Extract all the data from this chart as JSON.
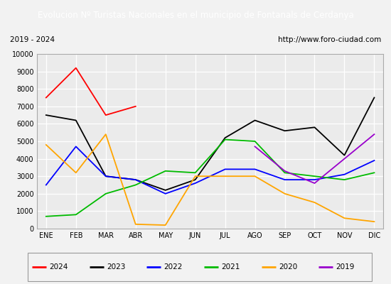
{
  "title": "Evolucion Nº Turistas Nacionales en el municipio de Fontanals de Cerdanya",
  "subtitle_left": "2019 - 2024",
  "subtitle_right": "http://www.foro-ciudad.com",
  "x_labels": [
    "ENE",
    "FEB",
    "MAR",
    "ABR",
    "MAY",
    "JUN",
    "JUL",
    "AGO",
    "SEP",
    "OCT",
    "NOV",
    "DIC"
  ],
  "ylim": [
    0,
    10000
  ],
  "yticks": [
    0,
    1000,
    2000,
    3000,
    4000,
    5000,
    6000,
    7000,
    8000,
    9000,
    10000
  ],
  "series": {
    "2024": {
      "color": "#ff0000",
      "data": [
        7500,
        9200,
        6500,
        7000,
        null,
        null,
        null,
        null,
        null,
        null,
        null,
        null
      ]
    },
    "2023": {
      "color": "#000000",
      "data": [
        6500,
        6200,
        3000,
        2800,
        2200,
        2800,
        5200,
        6200,
        5600,
        5800,
        4200,
        7500
      ]
    },
    "2022": {
      "color": "#0000ff",
      "data": [
        2500,
        4700,
        3000,
        2800,
        2000,
        2600,
        3400,
        3400,
        2800,
        2800,
        3100,
        3900
      ]
    },
    "2021": {
      "color": "#00bb00",
      "data": [
        700,
        800,
        2000,
        2500,
        3300,
        3200,
        5100,
        5000,
        3200,
        3000,
        2800,
        3200
      ]
    },
    "2020": {
      "color": "#ffa500",
      "data": [
        4800,
        3200,
        5400,
        250,
        200,
        3000,
        3000,
        3000,
        2000,
        1500,
        600,
        400
      ]
    },
    "2019": {
      "color": "#9900cc",
      "data": [
        null,
        null,
        null,
        null,
        null,
        null,
        null,
        4700,
        3300,
        2600,
        4000,
        5400
      ]
    }
  },
  "title_bg_color": "#4472c4",
  "title_font_color": "#ffffff",
  "plot_bg_color": "#ebebeb",
  "grid_color": "#ffffff",
  "subtitle_box_color": "#f2f2f2",
  "outer_bg_color": "#f2f2f2",
  "legend_order": [
    "2024",
    "2023",
    "2022",
    "2021",
    "2020",
    "2019"
  ]
}
